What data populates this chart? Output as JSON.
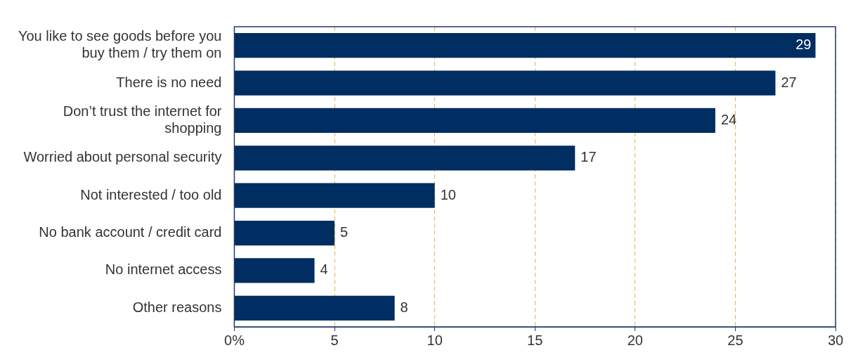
{
  "chart_data": {
    "type": "bar",
    "orientation": "horizontal",
    "categories": [
      "You like to see goods before you buy them / try them on",
      "There is no need",
      "Don’t trust the internet for shopping",
      "Worried about personal security",
      "Not interested / too old",
      "No bank account / credit card",
      "No internet access",
      "Other reasons"
    ],
    "values": [
      29,
      27,
      24,
      17,
      10,
      5,
      4,
      8
    ],
    "color": "#002d62",
    "xlim": [
      0,
      30
    ],
    "xticks": [
      {
        "value": 0,
        "label": "0%"
      },
      5,
      10,
      15,
      20,
      25,
      30
    ],
    "grid": "x",
    "data_labels": true,
    "legend": false
  }
}
